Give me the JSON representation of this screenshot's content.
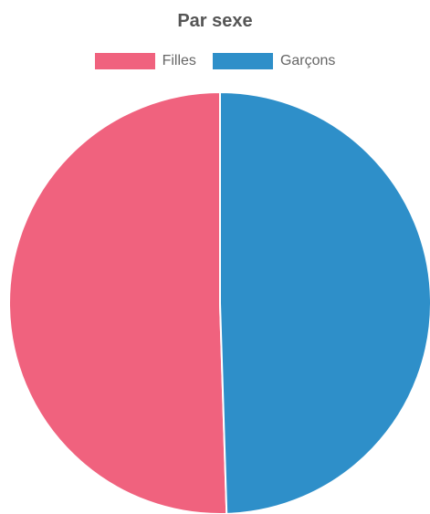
{
  "chart_data": {
    "type": "pie",
    "title": "Par sexe",
    "legend_position": "top",
    "categories": [
      "Filles",
      "Garçons"
    ],
    "values": [
      50.5,
      49.5
    ],
    "colors": [
      "#f0627e",
      "#2e8fc9"
    ]
  }
}
